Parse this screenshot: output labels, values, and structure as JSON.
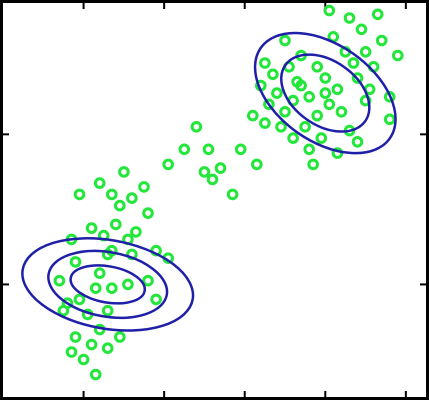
{
  "chart_data": {
    "type": "scatter",
    "title": "",
    "xlabel": "",
    "ylabel": "",
    "xlim": [
      -2,
      8.5
    ],
    "ylim": [
      -2,
      8.5
    ],
    "grid": false,
    "legend": "none",
    "colors": {
      "points": "#22e63a",
      "ellipses": "#1f1fa8",
      "axes": "#000000"
    },
    "series": [
      {
        "values": [
          [
            -0.2,
            1.6
          ],
          [
            -0.3,
            2.2
          ],
          [
            -0.5,
            0.3
          ],
          [
            -0.4,
            0.5
          ],
          [
            -0.1,
            0.6
          ],
          [
            -0.2,
            -0.4
          ],
          [
            0.1,
            0.2
          ],
          [
            0.3,
            0.9
          ],
          [
            0.4,
            1.3
          ],
          [
            0.6,
            1.8
          ],
          [
            0.2,
            2.5
          ],
          [
            0.5,
            2.3
          ],
          [
            0.7,
            1.9
          ],
          [
            0.8,
            2.6
          ],
          [
            0.9,
            3.1
          ],
          [
            1.1,
            2.2
          ],
          [
            1.3,
            2.4
          ],
          [
            1.2,
            1.8
          ],
          [
            1.1,
            1.0
          ],
          [
            0.7,
            0.9
          ],
          [
            0.6,
            0.3
          ],
          [
            0.4,
            -0.2
          ],
          [
            0.2,
            -0.6
          ],
          [
            0.0,
            -1.0
          ],
          [
            -0.3,
            -0.8
          ],
          [
            0.3,
            -1.4
          ],
          [
            -0.1,
            3.4
          ],
          [
            0.4,
            3.7
          ],
          [
            0.7,
            3.4
          ],
          [
            1.0,
            4.0
          ],
          [
            1.2,
            3.3
          ],
          [
            1.5,
            3.6
          ],
          [
            1.6,
            2.9
          ],
          [
            1.8,
            1.9
          ],
          [
            2.1,
            1.7
          ],
          [
            1.6,
            1.1
          ],
          [
            1.8,
            0.6
          ],
          [
            0.9,
            -0.4
          ],
          [
            0.6,
            -0.7
          ],
          [
            -0.6,
            1.1
          ],
          [
            2.1,
            4.2
          ],
          [
            2.5,
            4.6
          ],
          [
            2.8,
            5.2
          ],
          [
            3.0,
            4.0
          ],
          [
            3.2,
            3.8
          ],
          [
            3.1,
            4.6
          ],
          [
            3.4,
            4.1
          ],
          [
            3.7,
            3.4
          ],
          [
            3.9,
            4.6
          ],
          [
            4.3,
            4.2
          ],
          [
            4.5,
            5.3
          ],
          [
            4.2,
            5.5
          ],
          [
            4.6,
            5.8
          ],
          [
            4.8,
            6.1
          ],
          [
            5.0,
            5.6
          ],
          [
            5.2,
            5.9
          ],
          [
            5.4,
            6.3
          ],
          [
            5.6,
            6.0
          ],
          [
            5.5,
            5.2
          ],
          [
            5.8,
            5.5
          ],
          [
            6.0,
            6.5
          ],
          [
            6.1,
            5.8
          ],
          [
            6.3,
            6.2
          ],
          [
            5.9,
            4.9
          ],
          [
            5.6,
            4.6
          ],
          [
            6.5,
            7.2
          ],
          [
            6.8,
            6.5
          ],
          [
            6.6,
            5.1
          ],
          [
            7.0,
            5.9
          ],
          [
            7.2,
            6.8
          ],
          [
            7.4,
            7.5
          ],
          [
            7.1,
            6.2
          ],
          [
            6.2,
            7.6
          ],
          [
            5.4,
            7.1
          ],
          [
            5.1,
            6.8
          ],
          [
            4.7,
            6.6
          ],
          [
            6.9,
            7.8
          ],
          [
            7.6,
            5.4
          ],
          [
            7.8,
            7.1
          ],
          [
            7.3,
            8.2
          ],
          [
            6.6,
            8.1
          ],
          [
            6.1,
            8.3
          ],
          [
            8.0,
            8.7
          ],
          [
            7.6,
            6.0
          ],
          [
            5.0,
            7.5
          ],
          [
            4.5,
            6.9
          ],
          [
            6.8,
            4.8
          ],
          [
            6.3,
            4.5
          ],
          [
            5.7,
            4.2
          ],
          [
            5.2,
            4.9
          ],
          [
            4.4,
            6.3
          ],
          [
            4.9,
            5.2
          ],
          [
            5.8,
            6.8
          ],
          [
            6.4,
            5.6
          ],
          [
            6.7,
            6.9
          ],
          [
            7.0,
            7.2
          ],
          [
            5.3,
            6.4
          ],
          [
            6.0,
            6.1
          ]
        ]
      }
    ],
    "ellipses": [
      {
        "cx": 0.6,
        "cy": 1.0,
        "rx": 0.45,
        "ry": 1.0,
        "angle": -80
      },
      {
        "cx": 0.6,
        "cy": 1.0,
        "rx": 0.8,
        "ry": 1.6,
        "angle": -80
      },
      {
        "cx": 0.6,
        "cy": 1.0,
        "rx": 1.1,
        "ry": 2.3,
        "angle": -80
      },
      {
        "cx": 6.0,
        "cy": 6.1,
        "rx": 0.8,
        "ry": 1.3,
        "angle": -55
      },
      {
        "cx": 6.0,
        "cy": 6.1,
        "rx": 1.2,
        "ry": 2.1,
        "angle": -55
      }
    ]
  }
}
